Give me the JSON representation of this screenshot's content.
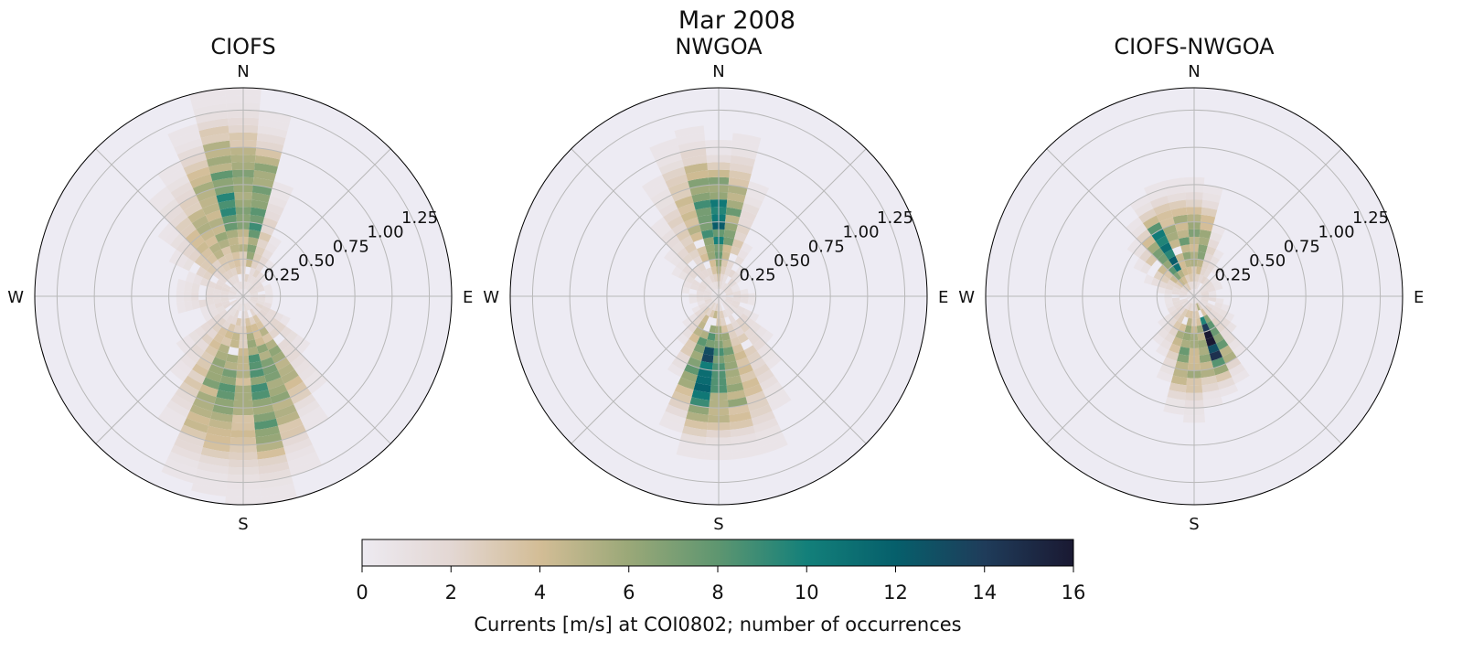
{
  "figure": {
    "title": "Mar 2008"
  },
  "colorbar": {
    "label": "Currents [m/s] at COI0802; number of occurrences",
    "min": 0,
    "max": 16,
    "ticks": [
      "0",
      "2",
      "4",
      "6",
      "8",
      "10",
      "12",
      "14",
      "16"
    ],
    "colormap": [
      "#edeaf1",
      "#e3d7d3",
      "#d3bd96",
      "#9aa878",
      "#5e9670",
      "#13807a",
      "#065f6b",
      "#1f3c5a",
      "#1a1932"
    ]
  },
  "chart_data": [
    {
      "type": "heatmap",
      "subtype": "polar-rose",
      "title": "CIOFS",
      "directions": [
        "N",
        "E",
        "S",
        "W"
      ],
      "radial_ticks": [
        "0.25",
        "0.50",
        "0.75",
        "1.00",
        "1.25"
      ],
      "rlim": [
        0,
        1.4
      ],
      "grid": true,
      "theta_bin_width_deg": 10,
      "speed_bin_width": 0.05,
      "profile": [
        [
          0,
          1.4,
          5.5
        ],
        [
          10,
          1.25,
          7.5
        ],
        [
          20,
          0.8,
          2.0
        ],
        [
          30,
          0.45,
          1.5
        ],
        [
          40,
          0.3,
          1.0
        ],
        [
          50,
          0.22,
          1.0
        ],
        [
          60,
          0.22,
          1.0
        ],
        [
          70,
          0.22,
          1.0
        ],
        [
          80,
          0.22,
          1.0
        ],
        [
          90,
          0.2,
          1.0
        ],
        [
          100,
          0.22,
          1.0
        ],
        [
          110,
          0.25,
          1.0
        ],
        [
          120,
          0.35,
          1.5
        ],
        [
          130,
          0.55,
          1.5
        ],
        [
          140,
          0.8,
          1.5
        ],
        [
          150,
          1.0,
          4.5
        ],
        [
          160,
          1.25,
          5.5
        ],
        [
          170,
          1.4,
          7.5
        ],
        [
          180,
          1.4,
          4.0
        ],
        [
          190,
          1.35,
          6.0
        ],
        [
          200,
          1.3,
          5.0
        ],
        [
          210,
          1.0,
          3.0
        ],
        [
          220,
          0.7,
          1.5
        ],
        [
          230,
          0.55,
          1.0
        ],
        [
          240,
          0.3,
          1.0
        ],
        [
          250,
          0.3,
          1.0
        ],
        [
          260,
          0.45,
          1.0
        ],
        [
          270,
          0.45,
          1.0
        ],
        [
          280,
          0.45,
          1.0
        ],
        [
          290,
          0.4,
          1.5
        ],
        [
          300,
          0.55,
          1.5
        ],
        [
          310,
          0.7,
          2.0
        ],
        [
          320,
          0.9,
          3.0
        ],
        [
          330,
          1.0,
          4.0
        ],
        [
          340,
          1.2,
          5.0
        ],
        [
          350,
          1.4,
          7.0
        ]
      ]
    },
    {
      "type": "heatmap",
      "subtype": "polar-rose",
      "title": "NWGOA",
      "directions": [
        "N",
        "E",
        "S",
        "W"
      ],
      "radial_ticks": [
        "0.25",
        "0.50",
        "0.75",
        "1.00",
        "1.25"
      ],
      "rlim": [
        0,
        1.4
      ],
      "grid": true,
      "theta_bin_width_deg": 10,
      "speed_bin_width": 0.05,
      "profile": [
        [
          0,
          1.05,
          10.0
        ],
        [
          10,
          1.1,
          6.0
        ],
        [
          20,
          0.8,
          2.0
        ],
        [
          30,
          0.4,
          1.5
        ],
        [
          40,
          0.25,
          1.0
        ],
        [
          50,
          0.2,
          1.0
        ],
        [
          60,
          0.15,
          1.0
        ],
        [
          70,
          0.15,
          1.0
        ],
        [
          80,
          0.2,
          1.0
        ],
        [
          90,
          0.25,
          1.0
        ],
        [
          100,
          0.25,
          1.0
        ],
        [
          110,
          0.2,
          1.0
        ],
        [
          120,
          0.3,
          1.0
        ],
        [
          130,
          0.45,
          1.0
        ],
        [
          140,
          0.6,
          1.5
        ],
        [
          150,
          0.85,
          2.0
        ],
        [
          160,
          1.1,
          3.0
        ],
        [
          170,
          1.1,
          6.0
        ],
        [
          180,
          1.1,
          7.5
        ],
        [
          190,
          1.1,
          11.0
        ],
        [
          200,
          0.95,
          7.0
        ],
        [
          210,
          0.6,
          4.0
        ],
        [
          220,
          0.4,
          2.0
        ],
        [
          230,
          0.3,
          1.0
        ],
        [
          240,
          0.2,
          1.0
        ],
        [
          250,
          0.15,
          1.0
        ],
        [
          260,
          0.2,
          1.0
        ],
        [
          270,
          0.2,
          1.0
        ],
        [
          280,
          0.25,
          1.0
        ],
        [
          290,
          0.3,
          1.0
        ],
        [
          300,
          0.35,
          1.0
        ],
        [
          310,
          0.45,
          1.0
        ],
        [
          320,
          0.65,
          1.5
        ],
        [
          330,
          0.9,
          2.0
        ],
        [
          340,
          1.1,
          4.0
        ],
        [
          350,
          1.15,
          7.0
        ]
      ]
    },
    {
      "type": "heatmap",
      "subtype": "polar-rose",
      "title": "CIOFS-NWGOA",
      "directions": [
        "N",
        "E",
        "S",
        "W"
      ],
      "radial_ticks": [
        "0.25",
        "0.50",
        "0.75",
        "1.00",
        "1.25"
      ],
      "rlim": [
        0,
        1.4
      ],
      "grid": true,
      "theta_bin_width_deg": 10,
      "speed_bin_width": 0.05,
      "profile": [
        [
          0,
          0.8,
          5.0
        ],
        [
          10,
          0.75,
          5.0
        ],
        [
          20,
          0.5,
          2.0
        ],
        [
          30,
          0.35,
          1.5
        ],
        [
          40,
          0.25,
          1.0
        ],
        [
          50,
          0.2,
          1.0
        ],
        [
          60,
          0.2,
          1.0
        ],
        [
          70,
          0.2,
          1.0
        ],
        [
          80,
          0.15,
          1.0
        ],
        [
          90,
          0.15,
          1.0
        ],
        [
          100,
          0.2,
          1.0
        ],
        [
          110,
          0.25,
          1.0
        ],
        [
          120,
          0.3,
          1.0
        ],
        [
          130,
          0.4,
          1.5
        ],
        [
          140,
          0.5,
          1.5
        ],
        [
          150,
          0.65,
          7.0
        ],
        [
          160,
          0.7,
          14.0
        ],
        [
          170,
          0.75,
          6.0
        ],
        [
          180,
          0.85,
          5.0
        ],
        [
          190,
          0.8,
          6.0
        ],
        [
          200,
          0.6,
          4.0
        ],
        [
          210,
          0.45,
          2.5
        ],
        [
          220,
          0.4,
          1.5
        ],
        [
          230,
          0.3,
          1.0
        ],
        [
          240,
          0.25,
          1.0
        ],
        [
          250,
          0.2,
          1.0
        ],
        [
          260,
          0.2,
          1.0
        ],
        [
          270,
          0.2,
          1.0
        ],
        [
          280,
          0.25,
          1.0
        ],
        [
          290,
          0.35,
          1.5
        ],
        [
          300,
          0.45,
          2.0
        ],
        [
          310,
          0.55,
          4.0
        ],
        [
          320,
          0.65,
          6.5
        ],
        [
          330,
          0.75,
          10.0
        ],
        [
          340,
          0.8,
          5.0
        ],
        [
          350,
          0.8,
          5.5
        ]
      ]
    }
  ]
}
